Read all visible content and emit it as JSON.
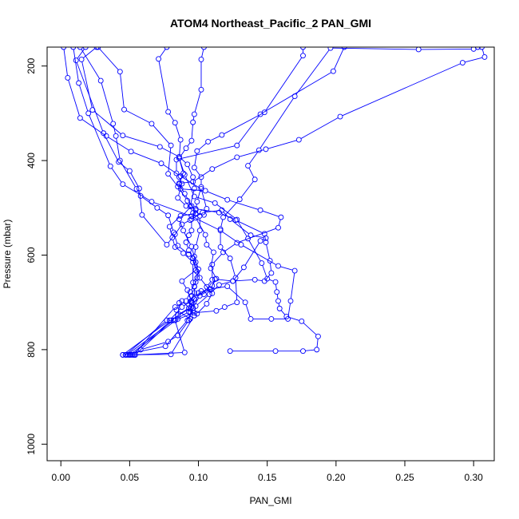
{
  "chart_data": {
    "type": "line",
    "title": "ATOM4 Northeast_Pacific_2 PAN_GMI",
    "xlabel": "PAN_GMI",
    "ylabel": "Pressure (mbar)",
    "xlim": [
      -0.01,
      0.315
    ],
    "ylim": [
      1035,
      160
    ],
    "y_reversed": true,
    "x_ticks": [
      0.0,
      0.05,
      0.1,
      0.15,
      0.2,
      0.25,
      0.3
    ],
    "x_tick_labels": [
      "0.00",
      "0.05",
      "0.10",
      "0.15",
      "0.20",
      "0.25",
      "0.30"
    ],
    "y_ticks": [
      200,
      400,
      600,
      800,
      1000
    ],
    "y_tick_labels": [
      "200",
      "400",
      "600",
      "800",
      "1000"
    ],
    "grid": false,
    "legend": "none",
    "series_color": "#0000ff",
    "series": [
      {
        "points": [
          [
            0.047,
            811
          ],
          [
            0.049,
            811
          ],
          [
            0.051,
            811
          ],
          [
            0.053,
            811
          ],
          [
            0.054,
            811
          ],
          [
            0.058,
            800
          ],
          [
            0.078,
            783
          ],
          [
            0.085,
            770
          ],
          [
            0.093,
            738
          ],
          [
            0.096,
            712
          ],
          [
            0.094,
            698
          ],
          [
            0.097,
            680
          ],
          [
            0.097,
            666
          ],
          [
            0.099,
            648
          ],
          [
            0.1,
            630
          ],
          [
            0.097,
            603
          ],
          [
            0.098,
            583
          ],
          [
            0.101,
            548
          ],
          [
            0.101,
            517
          ],
          [
            0.092,
            485
          ],
          [
            0.085,
            455
          ],
          [
            0.078,
            428
          ],
          [
            0.08,
            368
          ],
          [
            0.066,
            322
          ],
          [
            0.046,
            292
          ],
          [
            0.043,
            212
          ],
          [
            0.027,
            160
          ]
        ]
      },
      {
        "points": [
          [
            0.123,
            803
          ],
          [
            0.156,
            803
          ],
          [
            0.176,
            803
          ],
          [
            0.186,
            800
          ],
          [
            0.187,
            772
          ],
          [
            0.175,
            740
          ],
          [
            0.164,
            730
          ],
          [
            0.159,
            713
          ],
          [
            0.158,
            697
          ],
          [
            0.157,
            678
          ],
          [
            0.156,
            657
          ],
          [
            0.15,
            650
          ],
          [
            0.146,
            617
          ],
          [
            0.136,
            565
          ],
          [
            0.128,
            525
          ],
          [
            0.112,
            490
          ],
          [
            0.097,
            476
          ],
          [
            0.09,
            430
          ],
          [
            0.086,
            395
          ],
          [
            0.087,
            356
          ],
          [
            0.083,
            320
          ],
          [
            0.078,
            297
          ],
          [
            0.071,
            185
          ],
          [
            0.077,
            160
          ]
        ]
      },
      {
        "points": [
          [
            0.054,
            811
          ],
          [
            0.09,
            806
          ],
          [
            0.083,
            738
          ],
          [
            0.084,
            716
          ],
          [
            0.094,
            735
          ],
          [
            0.095,
            700
          ],
          [
            0.1,
            680
          ],
          [
            0.108,
            672
          ],
          [
            0.11,
            665
          ],
          [
            0.113,
            650
          ],
          [
            0.109,
            628
          ],
          [
            0.111,
            594
          ],
          [
            0.106,
            578
          ],
          [
            0.105,
            557
          ],
          [
            0.098,
            521
          ],
          [
            0.096,
            511
          ],
          [
            0.094,
            497
          ],
          [
            0.097,
            459
          ],
          [
            0.096,
            435
          ],
          [
            0.092,
            408
          ],
          [
            0.086,
            392
          ],
          [
            0.072,
            371
          ],
          [
            0.045,
            347
          ],
          [
            0.023,
            293
          ],
          [
            0.015,
            186
          ],
          [
            0.026,
            160
          ]
        ]
      },
      {
        "points": [
          [
            0.048,
            811
          ],
          [
            0.082,
            738
          ],
          [
            0.093,
            720
          ],
          [
            0.102,
            676
          ],
          [
            0.121,
            666
          ],
          [
            0.134,
            700
          ],
          [
            0.138,
            735
          ],
          [
            0.153,
            735
          ],
          [
            0.165,
            735
          ],
          [
            0.167,
            697
          ],
          [
            0.17,
            633
          ],
          [
            0.158,
            623
          ],
          [
            0.131,
            578
          ],
          [
            0.116,
            548
          ],
          [
            0.095,
            518
          ],
          [
            0.066,
            487
          ],
          [
            0.045,
            450
          ],
          [
            0.036,
            412
          ],
          [
            0.02,
            300
          ],
          [
            0.013,
            236
          ],
          [
            0.009,
            160
          ]
        ]
      },
      {
        "points": [
          [
            0.045,
            811
          ],
          [
            0.076,
            793
          ],
          [
            0.092,
            738
          ],
          [
            0.096,
            712
          ],
          [
            0.101,
            686
          ],
          [
            0.109,
            672
          ],
          [
            0.112,
            651
          ],
          [
            0.125,
            655
          ],
          [
            0.133,
            626
          ],
          [
            0.145,
            570
          ],
          [
            0.149,
            564
          ],
          [
            0.138,
            558
          ],
          [
            0.123,
            524
          ],
          [
            0.117,
            505
          ],
          [
            0.103,
            510
          ],
          [
            0.094,
            526
          ],
          [
            0.088,
            535
          ],
          [
            0.083,
            556
          ],
          [
            0.077,
            578
          ],
          [
            0.059,
            515
          ],
          [
            0.057,
            459
          ],
          [
            0.05,
            422
          ],
          [
            0.042,
            403
          ],
          [
            0.031,
            342
          ],
          [
            0.011,
            188
          ],
          [
            0.018,
            160
          ]
        ]
      },
      {
        "points": [
          [
            0.054,
            811
          ],
          [
            0.085,
            727
          ],
          [
            0.093,
            712
          ],
          [
            0.095,
            686
          ],
          [
            0.104,
            683
          ],
          [
            0.106,
            667
          ],
          [
            0.11,
            652
          ],
          [
            0.11,
            620
          ],
          [
            0.118,
            594
          ],
          [
            0.128,
            574
          ],
          [
            0.158,
            542
          ],
          [
            0.16,
            520
          ],
          [
            0.145,
            505
          ],
          [
            0.121,
            483
          ],
          [
            0.105,
            464
          ],
          [
            0.087,
            460
          ],
          [
            0.086,
            448
          ],
          [
            0.096,
            445
          ],
          [
            0.11,
            418
          ],
          [
            0.128,
            393
          ],
          [
            0.149,
            376
          ],
          [
            0.173,
            356
          ],
          [
            0.203,
            307
          ],
          [
            0.292,
            193
          ],
          [
            0.308,
            181
          ],
          [
            0.306,
            160
          ]
        ]
      },
      {
        "points": [
          [
            0.05,
            811
          ],
          [
            0.085,
            735
          ],
          [
            0.086,
            701
          ],
          [
            0.088,
            697
          ],
          [
            0.094,
            714
          ],
          [
            0.094,
            720
          ],
          [
            0.099,
            724
          ],
          [
            0.106,
            703
          ],
          [
            0.11,
            681
          ],
          [
            0.101,
            648
          ],
          [
            0.098,
            615
          ],
          [
            0.095,
            582
          ],
          [
            0.089,
            548
          ],
          [
            0.086,
            524
          ],
          [
            0.095,
            496
          ],
          [
            0.09,
            470
          ],
          [
            0.086,
            450
          ],
          [
            0.089,
            427
          ],
          [
            0.086,
            395
          ],
          [
            0.091,
            374
          ],
          [
            0.095,
            358
          ],
          [
            0.096,
            319
          ],
          [
            0.097,
            302
          ],
          [
            0.102,
            250
          ],
          [
            0.102,
            186
          ],
          [
            0.104,
            160
          ]
        ]
      },
      {
        "points": [
          [
            0.052,
            811
          ],
          [
            0.08,
            738
          ],
          [
            0.095,
            710
          ],
          [
            0.095,
            697
          ],
          [
            0.092,
            674
          ],
          [
            0.088,
            655
          ],
          [
            0.098,
            632
          ],
          [
            0.096,
            607
          ],
          [
            0.093,
            598
          ],
          [
            0.085,
            580
          ],
          [
            0.082,
            552
          ],
          [
            0.078,
            516
          ],
          [
            0.07,
            500
          ],
          [
            0.058,
            475
          ],
          [
            0.055,
            460
          ],
          [
            0.043,
            400
          ],
          [
            0.04,
            348
          ],
          [
            0.038,
            322
          ],
          [
            0.029,
            231
          ],
          [
            0.014,
            160
          ]
        ]
      },
      {
        "points": [
          [
            0.045,
            811
          ],
          [
            0.079,
            738
          ],
          [
            0.088,
            710
          ],
          [
            0.097,
            693
          ],
          [
            0.097,
            667
          ],
          [
            0.096,
            658
          ],
          [
            0.096,
            615
          ],
          [
            0.089,
            596
          ],
          [
            0.083,
            583
          ],
          [
            0.081,
            563
          ],
          [
            0.079,
            540
          ],
          [
            0.087,
            517
          ],
          [
            0.098,
            512
          ],
          [
            0.104,
            515
          ],
          [
            0.106,
            502
          ],
          [
            0.102,
            460
          ],
          [
            0.087,
            433
          ],
          [
            0.073,
            406
          ],
          [
            0.051,
            381
          ],
          [
            0.033,
            348
          ],
          [
            0.014,
            310
          ],
          [
            0.005,
            225
          ],
          [
            0.002,
            160
          ]
        ]
      },
      {
        "points": [
          [
            0.053,
            811
          ],
          [
            0.083,
            710
          ],
          [
            0.091,
            697
          ],
          [
            0.094,
            678
          ],
          [
            0.098,
            657
          ],
          [
            0.099,
            635
          ],
          [
            0.096,
            607
          ],
          [
            0.093,
            590
          ],
          [
            0.091,
            573
          ],
          [
            0.093,
            558
          ],
          [
            0.095,
            548
          ],
          [
            0.095,
            524
          ],
          [
            0.098,
            505
          ],
          [
            0.099,
            487
          ],
          [
            0.102,
            456
          ],
          [
            0.102,
            435
          ],
          [
            0.097,
            415
          ],
          [
            0.099,
            380
          ],
          [
            0.107,
            360
          ],
          [
            0.117,
            346
          ],
          [
            0.148,
            298
          ],
          [
            0.176,
            178
          ],
          [
            0.176,
            160
          ]
        ]
      },
      {
        "points": [
          [
            0.05,
            811
          ],
          [
            0.08,
            810
          ],
          [
            0.097,
            728
          ],
          [
            0.098,
            708
          ],
          [
            0.108,
            683
          ],
          [
            0.115,
            663
          ],
          [
            0.125,
            655
          ],
          [
            0.141,
            652
          ],
          [
            0.148,
            655
          ],
          [
            0.153,
            638
          ],
          [
            0.152,
            612
          ],
          [
            0.149,
            573
          ],
          [
            0.148,
            555
          ],
          [
            0.127,
            526
          ],
          [
            0.115,
            510
          ],
          [
            0.098,
            502
          ],
          [
            0.091,
            496
          ],
          [
            0.085,
            479
          ],
          [
            0.088,
            449
          ],
          [
            0.086,
            435
          ],
          [
            0.084,
            427
          ],
          [
            0.084,
            398
          ],
          [
            0.128,
            368
          ],
          [
            0.145,
            302
          ],
          [
            0.198,
            211
          ],
          [
            0.206,
            160
          ]
        ]
      },
      {
        "points": [
          [
            0.047,
            811
          ],
          [
            0.077,
            738
          ],
          [
            0.083,
            738
          ],
          [
            0.097,
            722
          ],
          [
            0.113,
            718
          ],
          [
            0.119,
            710
          ],
          [
            0.128,
            700
          ],
          [
            0.127,
            648
          ],
          [
            0.123,
            607
          ],
          [
            0.116,
            583
          ],
          [
            0.116,
            545
          ],
          [
            0.118,
            520
          ],
          [
            0.13,
            482
          ],
          [
            0.141,
            440
          ],
          [
            0.136,
            411
          ],
          [
            0.144,
            378
          ],
          [
            0.17,
            264
          ],
          [
            0.196,
            162
          ],
          [
            0.26,
            165
          ],
          [
            0.3,
            164
          ],
          [
            0.303,
            160
          ]
        ]
      }
    ]
  }
}
